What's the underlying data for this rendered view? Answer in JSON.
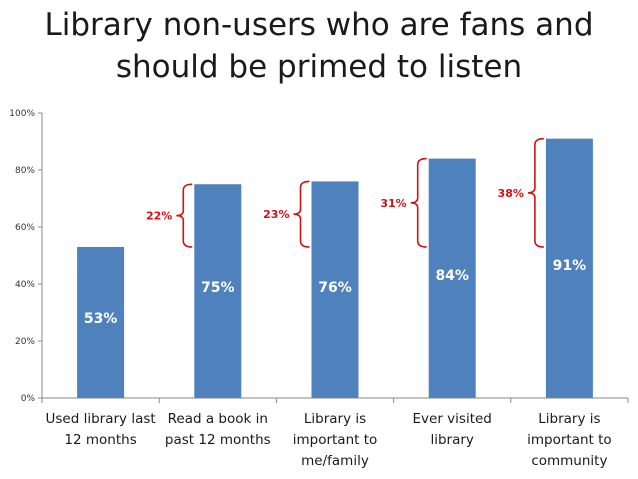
{
  "title_lines": [
    "Library non-users who are fans and",
    "should be primed to listen"
  ],
  "colors": {
    "bar": "#4f81bd",
    "bracket": "#cc1414",
    "axis": "#888888"
  },
  "chart_data": {
    "type": "bar",
    "title": "Library non-users who are fans and should be primed to listen",
    "categories": [
      [
        "Used library last",
        "12 months"
      ],
      [
        "Read a book in",
        "past 12 months"
      ],
      [
        "Library is",
        "important to",
        "me/family"
      ],
      [
        "Ever visited",
        "library"
      ],
      [
        "Library is",
        "important to",
        "community"
      ]
    ],
    "values": [
      53,
      75,
      76,
      84,
      91
    ],
    "value_labels": [
      "53%",
      "75%",
      "76%",
      "84%",
      "91%"
    ],
    "ylim": [
      0,
      100
    ],
    "yticks": [
      0,
      20,
      40,
      60,
      80,
      100
    ],
    "ytick_labels": [
      "0%",
      "20%",
      "40%",
      "60%",
      "80%",
      "100%"
    ],
    "annotations": [
      {
        "category_index": 1,
        "from": 53,
        "to": 75,
        "label": "22%"
      },
      {
        "category_index": 2,
        "from": 53,
        "to": 76,
        "label": "23%"
      },
      {
        "category_index": 3,
        "from": 53,
        "to": 84,
        "label": "31%"
      },
      {
        "category_index": 4,
        "from": 53,
        "to": 91,
        "label": "38%"
      }
    ]
  }
}
